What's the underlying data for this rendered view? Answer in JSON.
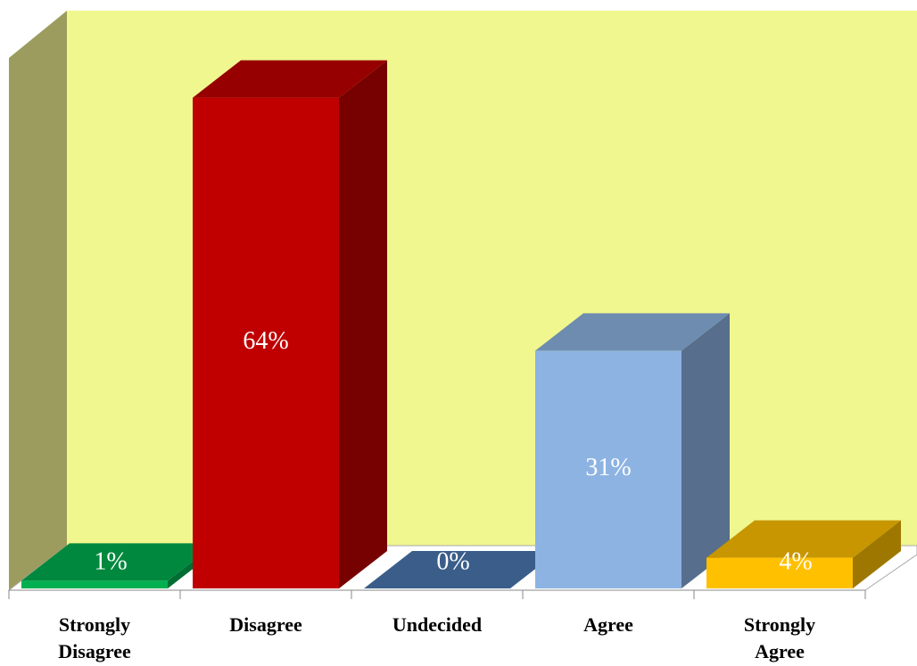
{
  "chart_data": {
    "type": "bar3d",
    "categories": [
      "Strongly Disagree",
      "Disagree",
      "Undecided",
      "Agree",
      "Strongly Agree"
    ],
    "values": [
      1,
      64,
      0,
      31,
      4
    ],
    "value_labels": [
      "1%",
      "64%",
      "0%",
      "31%",
      "4%"
    ],
    "colors": [
      "#00b050",
      "#c00000",
      "#4a78b0",
      "#8db3e2",
      "#ffc000"
    ]
  }
}
